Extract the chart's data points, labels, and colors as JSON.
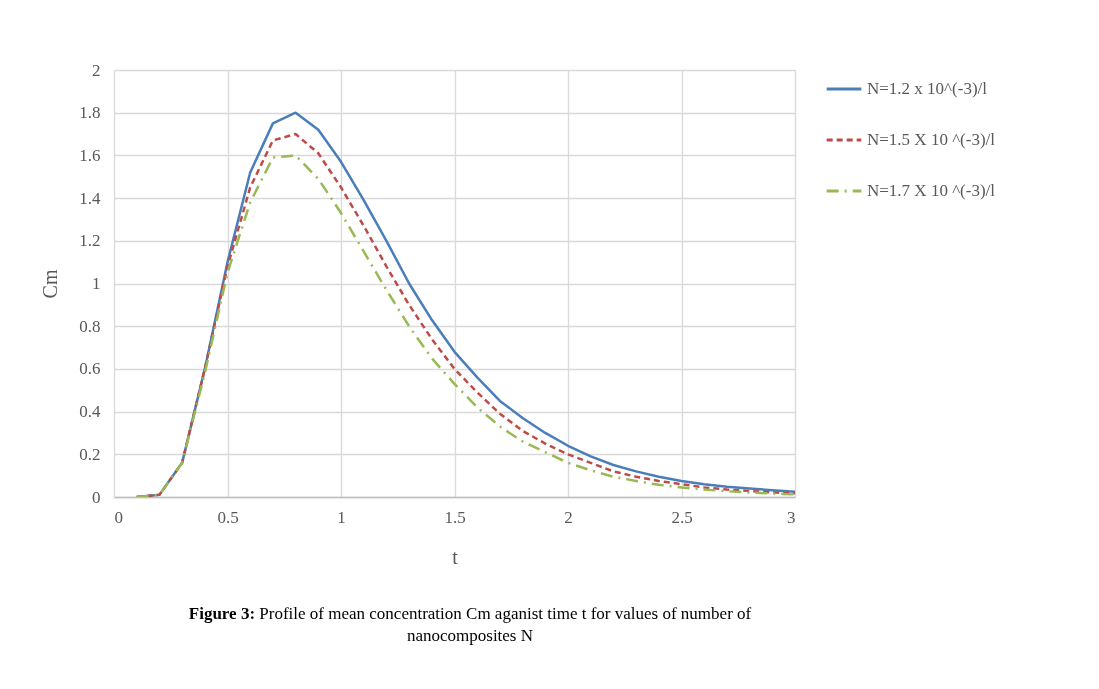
{
  "chart_data": {
    "type": "line",
    "xlabel": "t",
    "ylabel": "Cm",
    "x": [
      0.1,
      0.2,
      0.3,
      0.4,
      0.5,
      0.6,
      0.7,
      0.8,
      0.9,
      1.0,
      1.1,
      1.2,
      1.3,
      1.4,
      1.5,
      1.6,
      1.7,
      1.8,
      1.9,
      2.0,
      2.1,
      2.2,
      2.3,
      2.4,
      2.5,
      2.6,
      2.7,
      2.8,
      2.9,
      3.0
    ],
    "series": [
      {
        "name": "N=1.2 x 10^(-3)/l",
        "color": "#4a7ebb",
        "line_style": "solid",
        "values": [
          0,
          0.01,
          0.16,
          0.6,
          1.1,
          1.52,
          1.75,
          1.8,
          1.72,
          1.57,
          1.39,
          1.2,
          1.0,
          0.83,
          0.68,
          0.56,
          0.45,
          0.37,
          0.3,
          0.24,
          0.19,
          0.15,
          0.12,
          0.095,
          0.075,
          0.06,
          0.048,
          0.04,
          0.032,
          0.025
        ]
      },
      {
        "name": "N=1.5 X 10 ^(-3)/l",
        "color": "#be4b48",
        "line_style": "dashed",
        "values": [
          0,
          0.01,
          0.16,
          0.6,
          1.08,
          1.45,
          1.67,
          1.7,
          1.61,
          1.45,
          1.27,
          1.08,
          0.9,
          0.74,
          0.6,
          0.49,
          0.39,
          0.31,
          0.25,
          0.2,
          0.16,
          0.12,
          0.095,
          0.075,
          0.06,
          0.045,
          0.035,
          0.028,
          0.022,
          0.017
        ]
      },
      {
        "name": "N=1.7 X 10 ^(-3)/l",
        "color": "#98b954",
        "line_style": "dashdot",
        "values": [
          0,
          0.01,
          0.16,
          0.58,
          1.05,
          1.38,
          1.59,
          1.6,
          1.49,
          1.33,
          1.15,
          0.97,
          0.8,
          0.65,
          0.53,
          0.42,
          0.33,
          0.26,
          0.21,
          0.16,
          0.125,
          0.095,
          0.075,
          0.057,
          0.045,
          0.035,
          0.027,
          0.021,
          0.016,
          0.012
        ]
      }
    ],
    "xlim": [
      0,
      3
    ],
    "xticks": [
      0,
      0.5,
      1,
      1.5,
      2,
      2.5,
      3
    ],
    "ylim": [
      0,
      2
    ],
    "yticks": [
      0,
      0.2,
      0.4,
      0.6,
      0.8,
      1,
      1.2,
      1.4,
      1.6,
      1.8,
      2
    ],
    "grid": true,
    "legend": "right",
    "marker": "none",
    "annotations": [
      "Figure 3: Profile of mean concentration Cm aganist time t for values of number of nanocomposites N"
    ]
  }
}
